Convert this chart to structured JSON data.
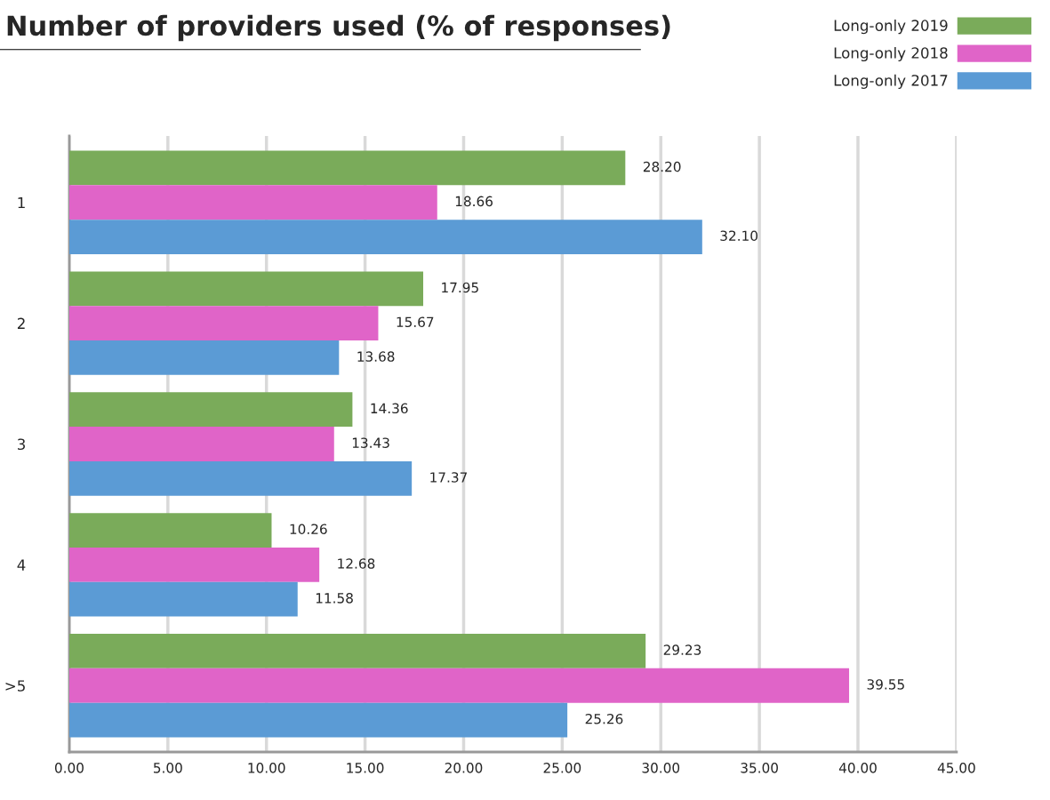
{
  "chart_data": {
    "type": "bar",
    "orientation": "horizontal",
    "title": "Number of providers used (% of responses)",
    "categories": [
      "1",
      "2",
      "3",
      "4",
      ">5"
    ],
    "series": [
      {
        "name": "Long-only 2019",
        "color": "#7aab5a",
        "values": [
          28.2,
          17.95,
          14.36,
          10.26,
          29.23
        ],
        "value_labels": [
          "28.20",
          "17.95",
          "14.36",
          "10.26",
          "29.23"
        ]
      },
      {
        "name": "Long-only 2018",
        "color": "#e064c8",
        "values": [
          18.66,
          15.67,
          13.43,
          12.68,
          39.55
        ],
        "value_labels": [
          "18.66",
          "15.67",
          "13.43",
          "12.68",
          "39.55"
        ]
      },
      {
        "name": "Long-only 2017",
        "color": "#5b9bd5",
        "values": [
          32.1,
          13.68,
          17.37,
          11.58,
          25.26
        ],
        "value_labels": [
          "32.10",
          "13.68",
          "17.37",
          "11.58",
          "25.26"
        ]
      }
    ],
    "xlim": [
      0,
      45
    ],
    "xticks": [
      {
        "value": 0,
        "label": "0.00"
      },
      {
        "value": 5,
        "label": "5.00"
      },
      {
        "value": 10,
        "label": "10.00"
      },
      {
        "value": 15,
        "label": "15.00"
      },
      {
        "value": 20,
        "label": "20.00"
      },
      {
        "value": 25,
        "label": "25.00"
      },
      {
        "value": 30,
        "label": "30.00"
      },
      {
        "value": 35,
        "label": "35.00"
      },
      {
        "value": 40,
        "label": "40.00"
      },
      {
        "value": 45,
        "label": "45.00"
      }
    ],
    "grid": "x",
    "legend": "top right"
  }
}
